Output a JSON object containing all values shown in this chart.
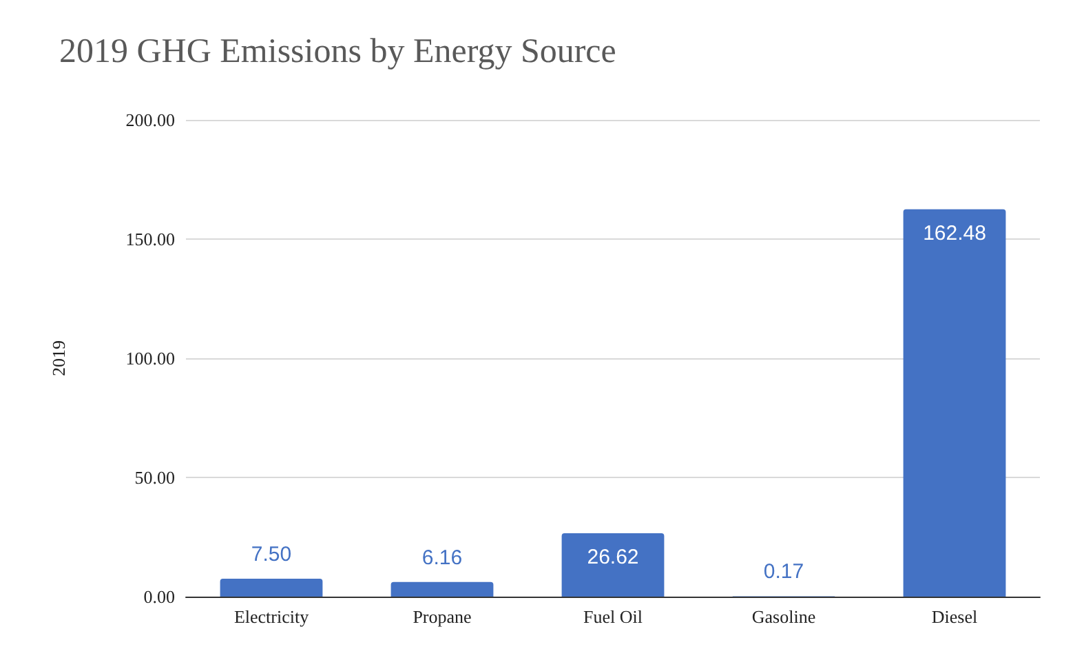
{
  "chart_data": {
    "type": "bar",
    "title": "2019 GHG Emissions by Energy Source",
    "ylabel": "2019",
    "categories": [
      "Electricity",
      "Propane",
      "Fuel Oil",
      "Gasoline",
      "Diesel"
    ],
    "values": [
      7.5,
      6.16,
      26.62,
      0.17,
      162.48
    ],
    "value_labels": [
      "7.50",
      "6.16",
      "26.62",
      "0.17",
      "162.48"
    ],
    "color": "#4472c4",
    "ylim": [
      0,
      200
    ],
    "yticks": [
      {
        "value": 0,
        "label": "0.00"
      },
      {
        "value": 50,
        "label": "50.00"
      },
      {
        "value": 100,
        "label": "100.00"
      },
      {
        "value": 150,
        "label": "150.00"
      },
      {
        "value": 200,
        "label": "200.00"
      }
    ],
    "grid": "y"
  }
}
